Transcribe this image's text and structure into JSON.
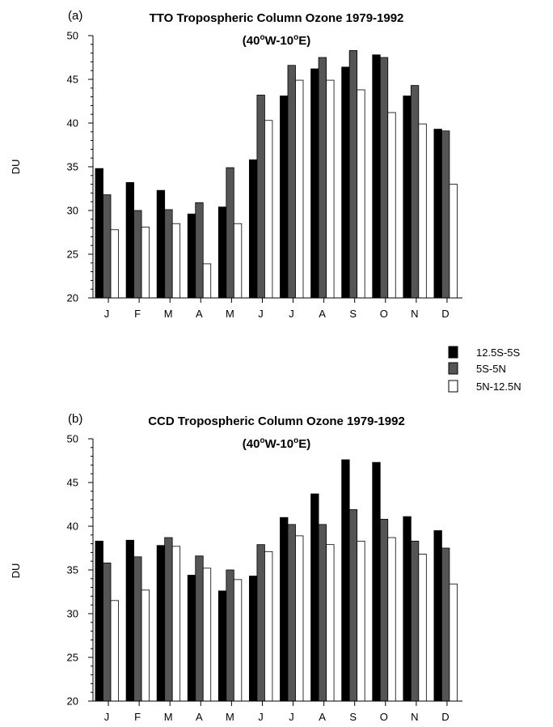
{
  "colors": {
    "series_12_5S_5S": "#000000",
    "series_5S_5N": "#555555",
    "series_5N_12_5N": "#ffffff",
    "stroke": "#000000"
  },
  "legend": {
    "placement": "right, between panels"
  },
  "chart_data": [
    {
      "type": "bar",
      "panel_label": "(a)",
      "title": "TTO Tropospheric Column  Ozone 1979-1992",
      "subtitle": "(40°W-10°E)",
      "subtitle_parts": {
        "a": "(40",
        "o1": "o",
        "b": "W-10",
        "o2": "o",
        "c": "E)"
      },
      "xlabel": "",
      "ylabel": "DU",
      "ylim": [
        20,
        50
      ],
      "yticks": [
        20,
        25,
        30,
        35,
        40,
        45,
        50
      ],
      "categories": [
        "J",
        "F",
        "M",
        "A",
        "M",
        "J",
        "J",
        "A",
        "S",
        "O",
        "N",
        "D"
      ],
      "series": [
        {
          "name": "12.5S-5S",
          "values": [
            34.8,
            33.2,
            32.3,
            29.6,
            30.4,
            35.8,
            43.1,
            46.2,
            46.4,
            47.8,
            43.1,
            39.3
          ]
        },
        {
          "name": "5S-5N",
          "values": [
            31.8,
            30.0,
            30.1,
            30.9,
            34.9,
            43.2,
            46.6,
            47.5,
            48.3,
            47.5,
            44.3,
            39.1
          ]
        },
        {
          "name": "5N-12.5N",
          "values": [
            27.8,
            28.1,
            28.5,
            23.9,
            28.5,
            40.3,
            44.9,
            44.9,
            43.8,
            41.2,
            39.9,
            33.0
          ]
        }
      ]
    },
    {
      "type": "bar",
      "panel_label": "(b)",
      "title": "CCD Tropospheric Column  Ozone 1979-1992",
      "subtitle": "(40°W-10°E)",
      "subtitle_parts": {
        "a": "(40",
        "o1": "o",
        "b": "W-10",
        "o2": "o",
        "c": "E)"
      },
      "xlabel": "",
      "ylabel": "DU",
      "ylim": [
        20,
        50
      ],
      "yticks": [
        20,
        25,
        30,
        35,
        40,
        45,
        50
      ],
      "categories": [
        "J",
        "F",
        "M",
        "A",
        "M",
        "J",
        "J",
        "A",
        "S",
        "O",
        "N",
        "D"
      ],
      "series": [
        {
          "name": "12.5S-5S",
          "values": [
            38.3,
            38.4,
            37.8,
            34.4,
            32.6,
            34.3,
            41.0,
            43.7,
            47.6,
            47.3,
            41.1,
            39.5
          ]
        },
        {
          "name": "5S-5N",
          "values": [
            35.8,
            36.5,
            38.7,
            36.6,
            35.0,
            37.9,
            40.2,
            40.2,
            41.9,
            40.8,
            38.3,
            37.5
          ]
        },
        {
          "name": "5N-12.5N",
          "values": [
            31.5,
            32.7,
            37.7,
            35.2,
            33.9,
            37.1,
            38.9,
            37.9,
            38.3,
            38.7,
            36.8,
            33.4
          ]
        }
      ]
    }
  ]
}
